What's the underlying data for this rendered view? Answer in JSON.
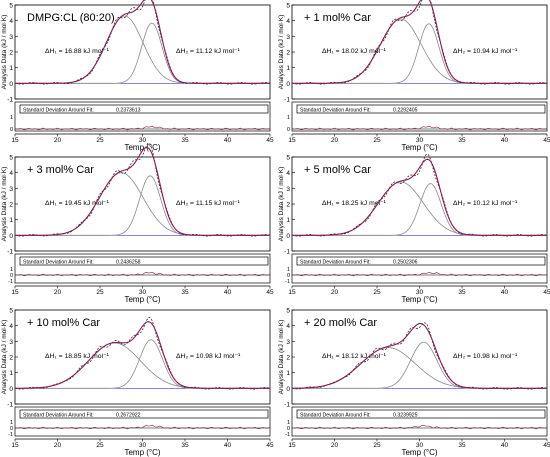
{
  "chart_data": [
    {
      "type": "line",
      "label": "DMPG:CL (80:20)",
      "xlabel": "Temp (°C)",
      "ylabel": "Analysis Data (kJ / mol·K)",
      "xlim": [
        15,
        45
      ],
      "ylim": [
        -1,
        5
      ],
      "xticks": [
        15,
        20,
        25,
        30,
        35,
        40,
        45
      ],
      "yticks": [
        -1,
        0,
        1,
        2,
        3,
        4,
        5
      ],
      "annotations": [
        {
          "text": "ΔH₁ = 16.88 kJ mol⁻¹"
        },
        {
          "text": "ΔH₂ = 11.12 kJ mol⁻¹"
        }
      ],
      "components": [
        {
          "center": 27.9,
          "height": 4.3,
          "width": 2.15
        },
        {
          "center": 31.1,
          "height": 3.85,
          "width": 1.2
        }
      ],
      "residual": {
        "label": "Standard Deviation Around Fit:",
        "value": "0.2373613",
        "yticks": [
          "1",
          "0"
        ]
      }
    },
    {
      "type": "line",
      "label": "+ 1 mol% Car",
      "xlabel": "Temp (°C)",
      "ylabel": "Analysis Data (kJ / mol·K)",
      "xlim": [
        15,
        45
      ],
      "ylim": [
        -1,
        5
      ],
      "xticks": [
        15,
        20,
        25,
        30,
        35,
        40,
        45
      ],
      "yticks": [
        -1,
        0,
        1,
        2,
        3,
        4,
        5
      ],
      "annotations": [
        {
          "text": "ΔH₁ = 18.02 kJ mol⁻¹"
        },
        {
          "text": "ΔH₂ = 10.94 kJ mol⁻¹"
        }
      ],
      "components": [
        {
          "center": 27.8,
          "height": 4.1,
          "width": 2.4
        },
        {
          "center": 31.1,
          "height": 3.8,
          "width": 1.2
        }
      ],
      "residual": {
        "label": "Standard Deviation Around Fit:",
        "value": "0.2292405",
        "yticks": [
          "1",
          "0"
        ]
      }
    },
    {
      "type": "line",
      "label": "+ 3 mol% Car",
      "xlabel": "Temp (°C)",
      "ylabel": "Analysis Data (kJ / mol·K)",
      "xlim": [
        15,
        45
      ],
      "ylim": [
        -1,
        5
      ],
      "xticks": [
        15,
        20,
        25,
        30,
        35,
        40,
        45
      ],
      "yticks": [
        -1,
        0,
        1,
        2,
        3,
        4,
        5
      ],
      "annotations": [
        {
          "text": "ΔH₁ = 19.45 kJ mol⁻¹"
        },
        {
          "text": "ΔH₂ = 11.15 kJ mol⁻¹"
        }
      ],
      "components": [
        {
          "center": 27.5,
          "height": 4.0,
          "width": 2.55
        },
        {
          "center": 30.9,
          "height": 3.8,
          "width": 1.25
        }
      ],
      "residual": {
        "label": "Standard Deviation Around Fit:",
        "value": "0.2436258",
        "yticks": [
          "1",
          "0",
          "-1"
        ]
      }
    },
    {
      "type": "line",
      "label": "+ 5 mol% Car",
      "xlabel": "Temp (°C)",
      "ylabel": "Analysis Data (kJ / mol·K)",
      "xlim": [
        15,
        45
      ],
      "ylim": [
        -1,
        5
      ],
      "xticks": [
        15,
        20,
        25,
        30,
        35,
        40,
        45
      ],
      "yticks": [
        -1,
        0,
        1,
        2,
        3,
        4,
        5
      ],
      "annotations": [
        {
          "text": "ΔH₁ = 18.25 kJ mol⁻¹"
        },
        {
          "text": "ΔH₂ = 10.12 kJ mol⁻¹"
        }
      ],
      "components": [
        {
          "center": 27.8,
          "height": 3.4,
          "width": 2.65
        },
        {
          "center": 31.3,
          "height": 3.3,
          "width": 1.25
        }
      ],
      "residual": {
        "label": "Standard Deviation Around Fit:",
        "value": "0.2502306",
        "yticks": [
          "1",
          "0",
          "-1"
        ]
      }
    },
    {
      "type": "line",
      "label": "+ 10 mol% Car",
      "xlabel": "Temp (°C)",
      "ylabel": "Analysis Data (kJ / mol·K)",
      "xlim": [
        15,
        45
      ],
      "ylim": [
        -1,
        5
      ],
      "xticks": [
        15,
        20,
        25,
        30,
        35,
        40,
        45
      ],
      "yticks": [
        -1,
        0,
        1,
        2,
        3,
        4,
        5
      ],
      "annotations": [
        {
          "text": "ΔH₁ = 18.85 kJ mol⁻¹"
        },
        {
          "text": "ΔH₂ = 10.98 kJ mol⁻¹"
        }
      ],
      "components": [
        {
          "center": 26.7,
          "height": 2.9,
          "width": 3.05
        },
        {
          "center": 31.0,
          "height": 3.1,
          "width": 1.35
        }
      ],
      "residual": {
        "label": "Standard Deviation Around Fit:",
        "value": "0.2672922",
        "yticks": [
          "1",
          "0",
          "-1"
        ]
      }
    },
    {
      "type": "line",
      "label": "+ 20 mol% Car",
      "xlabel": "Temp (°C)",
      "ylabel": "Analysis Data (kJ / mol·K)",
      "xlim": [
        15,
        45
      ],
      "ylim": [
        -1,
        5
      ],
      "xticks": [
        15,
        20,
        25,
        30,
        35,
        40,
        45
      ],
      "yticks": [
        -1,
        0,
        1,
        2,
        3,
        4,
        5
      ],
      "annotations": [
        {
          "text": "ΔH₁ = 18.12 kJ mol⁻¹"
        },
        {
          "text": "ΔH₂ = 10.98 kJ mol⁻¹"
        }
      ],
      "components": [
        {
          "center": 26.3,
          "height": 2.6,
          "width": 3.2
        },
        {
          "center": 30.5,
          "height": 2.95,
          "width": 1.55
        }
      ],
      "residual": {
        "label": "Standard Deviation Around Fit:",
        "value": "0.3239925",
        "yticks": [
          "1",
          "0",
          "-1"
        ]
      }
    }
  ],
  "colors": {
    "data": "#2b2b2b",
    "fit": "#8b1a5a",
    "component": "#8a8a8a",
    "baseline": "#3d3dcc",
    "residual": "#7a1f3d"
  }
}
